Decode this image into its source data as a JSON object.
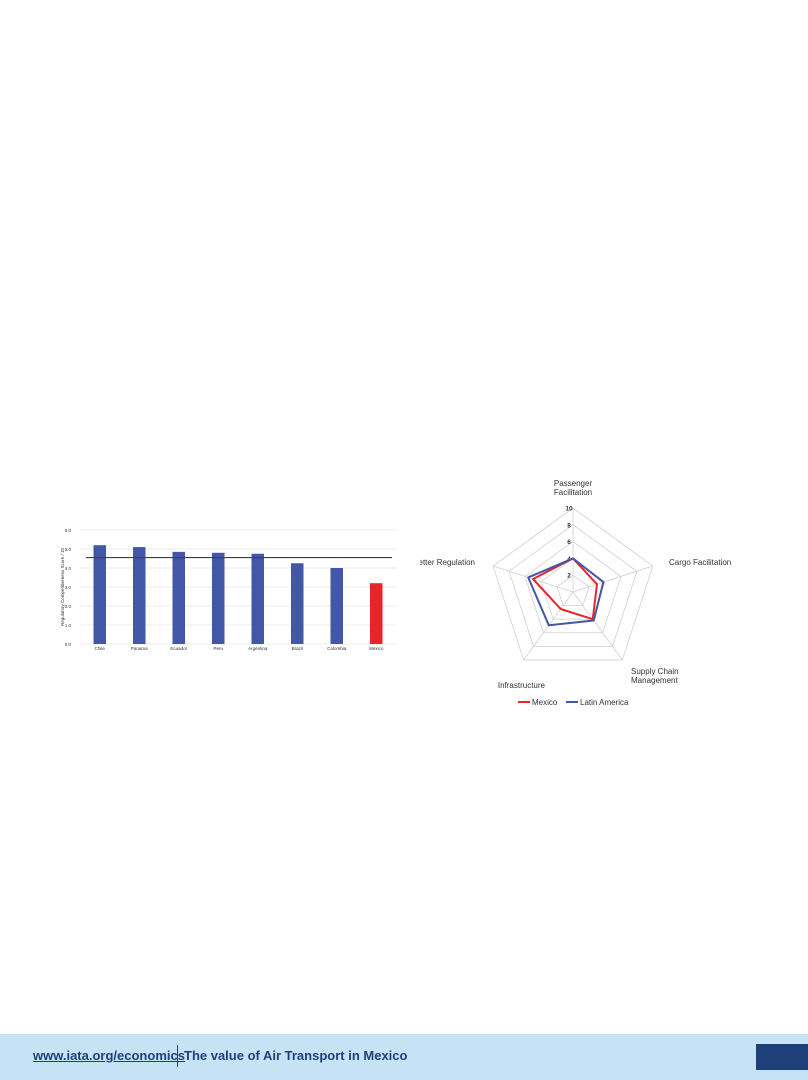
{
  "footer": {
    "link": "www.iata.org/economics",
    "title": "The value of Air Transport in Mexico",
    "accent": "#1f3f78",
    "background": "#c6e3f5"
  },
  "chart_data": [
    {
      "type": "bar",
      "title": "",
      "xlabel": "",
      "ylabel": "Regulatory Competitiveness Score / 10",
      "categories": [
        "Chile",
        "Panama",
        "Ecuador",
        "Peru",
        "Argentina",
        "Brazil",
        "Colombia",
        "Mexico"
      ],
      "values": [
        5.2,
        5.1,
        4.85,
        4.8,
        4.75,
        4.25,
        4.0,
        3.2
      ],
      "colors": [
        "#4257a8",
        "#4257a8",
        "#4257a8",
        "#4257a8",
        "#4257a8",
        "#4257a8",
        "#4257a8",
        "#e8262a"
      ],
      "reference_line": 4.55,
      "ylim": [
        0,
        6
      ],
      "yticks": [
        "0.0",
        "1.0",
        "2.0",
        "3.0",
        "4.0",
        "5.0",
        "6.0"
      ],
      "grid": true
    },
    {
      "type": "radar",
      "title": "",
      "axes": [
        "Passenger Facilitation",
        "Cargo Facilitation",
        "Supply Chain Management",
        "Infrastructure",
        "Better Regulation"
      ],
      "axis_label_lines": [
        [
          "Passenger",
          "Facilitation"
        ],
        [
          "Cargo Facilitation"
        ],
        [
          "Supply Chain",
          "Management"
        ],
        [
          "Infrastructure"
        ],
        [
          "Better Regulation"
        ]
      ],
      "rlim": [
        0,
        10
      ],
      "rticks": [
        "2",
        "4",
        "6",
        "8",
        "10"
      ],
      "series": [
        {
          "name": "Mexico",
          "color": "#e8262a",
          "values": [
            4.0,
            3.0,
            4.0,
            2.5,
            5.0
          ]
        },
        {
          "name": "Latin America",
          "color": "#4257a8",
          "values": [
            4.0,
            3.8,
            4.2,
            4.9,
            5.6
          ]
        }
      ],
      "legend": "bottom"
    }
  ]
}
